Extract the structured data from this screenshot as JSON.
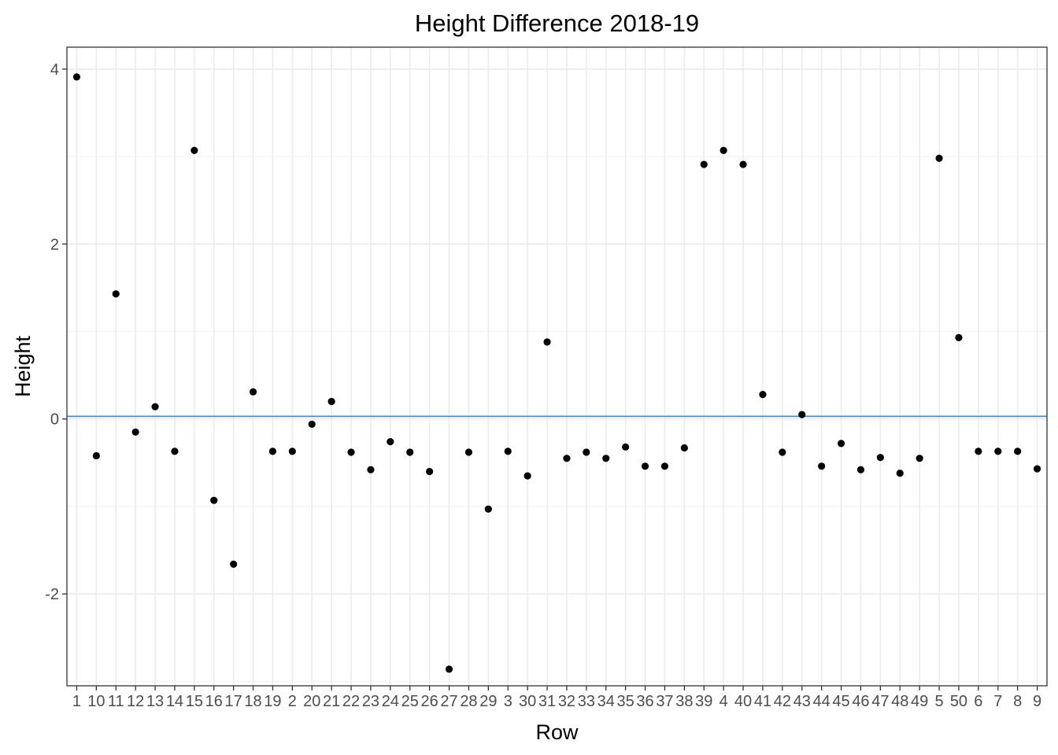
{
  "chart_data": {
    "type": "scatter",
    "title": "Height Difference 2018-19",
    "xlabel": "Row",
    "ylabel": "Height",
    "ylim": [
      -3.05,
      4.25
    ],
    "y_ticks": [
      -2,
      0,
      2,
      4
    ],
    "grid": true,
    "legend": "none",
    "reference_line": {
      "y": 0.03,
      "color": "#3b8fd9"
    },
    "point_color": "#000000",
    "categories": [
      "1",
      "10",
      "11",
      "12",
      "13",
      "14",
      "15",
      "16",
      "17",
      "18",
      "19",
      "2",
      "20",
      "21",
      "22",
      "23",
      "24",
      "25",
      "26",
      "27",
      "28",
      "29",
      "3",
      "30",
      "31",
      "32",
      "33",
      "34",
      "35",
      "36",
      "37",
      "38",
      "39",
      "4",
      "40",
      "41",
      "42",
      "43",
      "44",
      "45",
      "46",
      "47",
      "48",
      "49",
      "5",
      "50",
      "6",
      "7",
      "8",
      "9"
    ],
    "values": [
      3.91,
      -0.42,
      1.43,
      -0.15,
      0.14,
      -0.37,
      3.07,
      -0.93,
      -1.66,
      0.31,
      -0.37,
      -0.37,
      -0.06,
      0.2,
      -0.38,
      -0.58,
      -0.26,
      -0.38,
      -0.6,
      -2.86,
      -0.38,
      -1.03,
      -0.37,
      -0.65,
      0.88,
      -0.45,
      -0.38,
      -0.45,
      -0.32,
      -0.54,
      -0.54,
      -0.33,
      2.91,
      3.07,
      2.91,
      0.28,
      -0.38,
      0.05,
      -0.54,
      -0.28,
      -0.58,
      -0.44,
      -0.62,
      -0.45,
      2.98,
      0.93,
      -0.37,
      -0.37,
      -0.37,
      -0.57
    ]
  }
}
